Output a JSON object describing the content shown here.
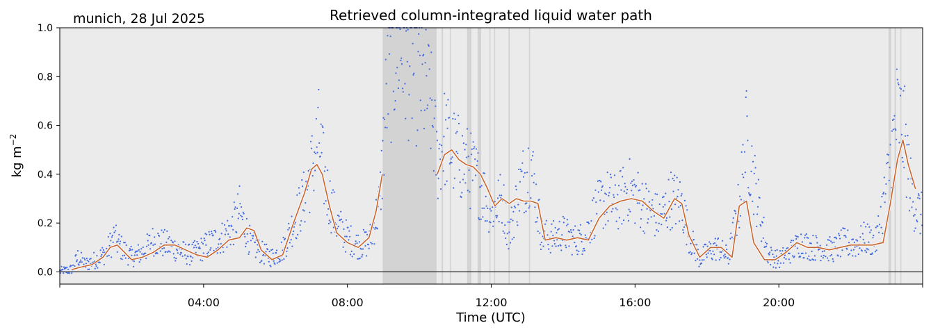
{
  "header": {
    "location_date": "munich, 28 Jul 2025"
  },
  "chart_data": {
    "type": "scatter",
    "title": "Retrieved column-integrated liquid water path",
    "xlabel": "Time (UTC)",
    "ylabel": "kg m",
    "ylabel_exponent": "−2",
    "xlim_hours": [
      0,
      24
    ],
    "ylim": [
      -0.05,
      1.0
    ],
    "yticks": [
      {
        "value": 0.0,
        "label": "0.0"
      },
      {
        "value": 0.2,
        "label": "0.2"
      },
      {
        "value": 0.4,
        "label": "0.4"
      },
      {
        "value": 0.6,
        "label": "0.6"
      },
      {
        "value": 0.8,
        "label": "0.8"
      },
      {
        "value": 1.0,
        "label": "1.0"
      }
    ],
    "xticks": [
      {
        "value": 4,
        "label": "04:00"
      },
      {
        "value": 8,
        "label": "08:00"
      },
      {
        "value": 12,
        "label": "12:00"
      },
      {
        "value": 16,
        "label": "16:00"
      },
      {
        "value": 20,
        "label": "20:00"
      }
    ],
    "grid": false,
    "background_color": "#ebebeb",
    "flag_color": "#d3d3d3",
    "raw_color": "#4169e1",
    "smooth_color": "#c8642d",
    "zero_line": true,
    "flagged_intervals_hours": [
      [
        8.98,
        10.48
      ],
      [
        10.62,
        10.66
      ],
      [
        10.85,
        10.88
      ],
      [
        11.33,
        11.45
      ],
      [
        11.62,
        11.72
      ],
      [
        11.95,
        11.98
      ],
      [
        12.08,
        12.11
      ],
      [
        12.48,
        12.52
      ],
      [
        13.05,
        13.08
      ],
      [
        23.05,
        23.12
      ],
      [
        23.22,
        23.26
      ],
      [
        23.38,
        23.41
      ]
    ],
    "raw_series": {
      "name": "",
      "x_hours": [
        0.0,
        0.35,
        0.5,
        0.7,
        1.0,
        1.3,
        1.5,
        1.7,
        2.0,
        2.3,
        2.6,
        3.0,
        3.3,
        3.6,
        3.9,
        4.2,
        4.5,
        4.8,
        5.0,
        5.3,
        5.6,
        5.9,
        6.2,
        6.5,
        6.8,
        7.0,
        7.2,
        7.4,
        7.7,
        8.0,
        8.3,
        8.6,
        8.9,
        9.1,
        9.4,
        9.7,
        10.0,
        10.3,
        10.5,
        10.7,
        11.0,
        11.3,
        11.6,
        11.8,
        12.0,
        12.3,
        12.5,
        12.8,
        13.1,
        13.4,
        13.7,
        14.0,
        14.3,
        14.6,
        14.9,
        15.2,
        15.5,
        15.8,
        16.1,
        16.4,
        16.7,
        17.0,
        17.3,
        17.5,
        17.8,
        18.0,
        18.3,
        18.6,
        18.9,
        19.1,
        19.4,
        19.7,
        20.0,
        20.3,
        20.6,
        20.9,
        21.2,
        21.5,
        21.8,
        22.1,
        22.4,
        22.7,
        23.0,
        23.3,
        23.5,
        23.7,
        24.0
      ],
      "y": [
        0.0,
        0.01,
        0.06,
        0.03,
        0.05,
        0.08,
        0.14,
        0.1,
        0.06,
        0.08,
        0.13,
        0.11,
        0.09,
        0.07,
        0.09,
        0.12,
        0.14,
        0.18,
        0.25,
        0.12,
        0.08,
        0.06,
        0.09,
        0.2,
        0.3,
        0.42,
        0.55,
        0.35,
        0.2,
        0.14,
        0.11,
        0.12,
        0.28,
        0.75,
        0.95,
        0.85,
        0.8,
        0.7,
        0.45,
        0.55,
        0.48,
        0.44,
        0.38,
        0.32,
        0.25,
        0.3,
        0.15,
        0.35,
        0.45,
        0.15,
        0.14,
        0.16,
        0.13,
        0.14,
        0.25,
        0.3,
        0.28,
        0.34,
        0.3,
        0.25,
        0.22,
        0.3,
        0.28,
        0.15,
        0.05,
        0.08,
        0.1,
        0.06,
        0.28,
        0.55,
        0.3,
        0.07,
        0.05,
        0.08,
        0.12,
        0.1,
        0.1,
        0.09,
        0.12,
        0.11,
        0.14,
        0.12,
        0.35,
        0.65,
        0.55,
        0.3,
        0.22
      ]
    },
    "smoothed_series": {
      "name": "",
      "x_hours": [
        0.35,
        0.6,
        0.9,
        1.2,
        1.4,
        1.6,
        1.8,
        2.0,
        2.3,
        2.6,
        2.9,
        3.2,
        3.5,
        3.8,
        4.1,
        4.4,
        4.7,
        5.0,
        5.2,
        5.4,
        5.6,
        5.9,
        6.2,
        6.5,
        6.8,
        7.0,
        7.15,
        7.3,
        7.5,
        7.7,
        8.0,
        8.3,
        8.6,
        8.8,
        8.97
      ],
      "y": [
        0.01,
        0.02,
        0.03,
        0.06,
        0.1,
        0.11,
        0.08,
        0.05,
        0.06,
        0.08,
        0.11,
        0.11,
        0.09,
        0.07,
        0.06,
        0.09,
        0.13,
        0.14,
        0.18,
        0.17,
        0.09,
        0.05,
        0.07,
        0.2,
        0.32,
        0.42,
        0.44,
        0.4,
        0.27,
        0.16,
        0.12,
        0.1,
        0.14,
        0.25,
        0.4
      ]
    },
    "smoothed_series_2": {
      "name": "",
      "x_hours": [
        10.5,
        10.7,
        10.9,
        11.1,
        11.3,
        11.5,
        11.7,
        11.9,
        12.1,
        12.3,
        12.5,
        12.7,
        12.9,
        13.1,
        13.3,
        13.5,
        13.8,
        14.1,
        14.4,
        14.7,
        15.0,
        15.3,
        15.6,
        15.9,
        16.2,
        16.5,
        16.8,
        17.1,
        17.3,
        17.5,
        17.8,
        18.1,
        18.4,
        18.7,
        18.9,
        19.1,
        19.3,
        19.6,
        19.9,
        20.2,
        20.5,
        20.8,
        21.1,
        21.4,
        21.7,
        22.0,
        22.3,
        22.6,
        22.9,
        23.1,
        23.3,
        23.45,
        23.6,
        23.8
      ],
      "y": [
        0.4,
        0.48,
        0.5,
        0.46,
        0.44,
        0.43,
        0.4,
        0.34,
        0.27,
        0.3,
        0.28,
        0.3,
        0.29,
        0.29,
        0.28,
        0.13,
        0.14,
        0.13,
        0.14,
        0.13,
        0.22,
        0.27,
        0.29,
        0.3,
        0.29,
        0.25,
        0.22,
        0.3,
        0.28,
        0.15,
        0.06,
        0.1,
        0.1,
        0.06,
        0.27,
        0.29,
        0.12,
        0.05,
        0.05,
        0.08,
        0.12,
        0.1,
        0.1,
        0.09,
        0.1,
        0.11,
        0.11,
        0.11,
        0.12,
        0.28,
        0.46,
        0.54,
        0.44,
        0.34
      ]
    }
  }
}
